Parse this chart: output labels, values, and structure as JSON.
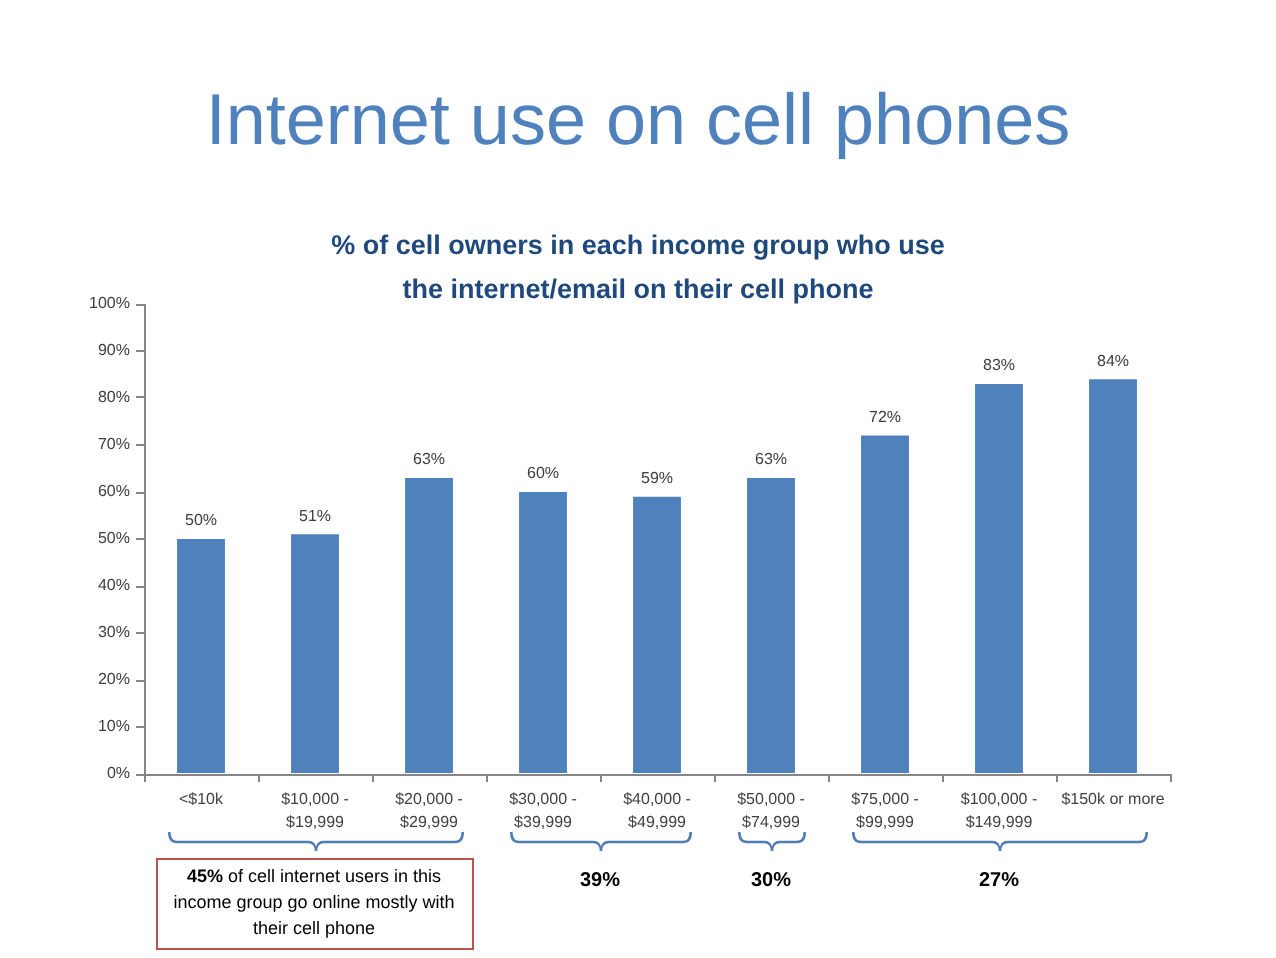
{
  "chart_data": {
    "type": "bar",
    "title": "Internet use on cell phones",
    "subtitle": "% of cell owners in each income group who use the internet/email on their cell phone",
    "categories": [
      "<$10k",
      "$10,000 - $19,999",
      "$20,000 - $29,999",
      "$30,000 - $39,999",
      "$40,000 - $49,999",
      "$50,000 - $74,999",
      "$75,000 - $99,999",
      "$100,000 - $149,999",
      "$150k or more"
    ],
    "values": [
      50,
      51,
      63,
      60,
      59,
      63,
      72,
      83,
      84
    ],
    "color": "#4f81bd",
    "value_labels": [
      "50%",
      "51%",
      "63%",
      "60%",
      "59%",
      "63%",
      "72%",
      "83%",
      "84%"
    ],
    "ylim": [
      0,
      100
    ],
    "yticks": [
      {
        "value": 0,
        "label": "0%"
      },
      {
        "value": 10,
        "label": "10%"
      },
      {
        "value": 20,
        "label": "20%"
      },
      {
        "value": 30,
        "label": "30%"
      },
      {
        "value": 40,
        "label": "40%"
      },
      {
        "value": 50,
        "label": "50%"
      },
      {
        "value": 60,
        "label": "60%"
      },
      {
        "value": 70,
        "label": "70%"
      },
      {
        "value": 80,
        "label": "80%"
      },
      {
        "value": 90,
        "label": "90%"
      },
      {
        "value": 100,
        "label": "100%"
      }
    ],
    "annotations": [
      "45% of cell internet users in this income group go online mostly with their cell phone",
      "39%",
      "30%",
      "27%"
    ]
  }
}
